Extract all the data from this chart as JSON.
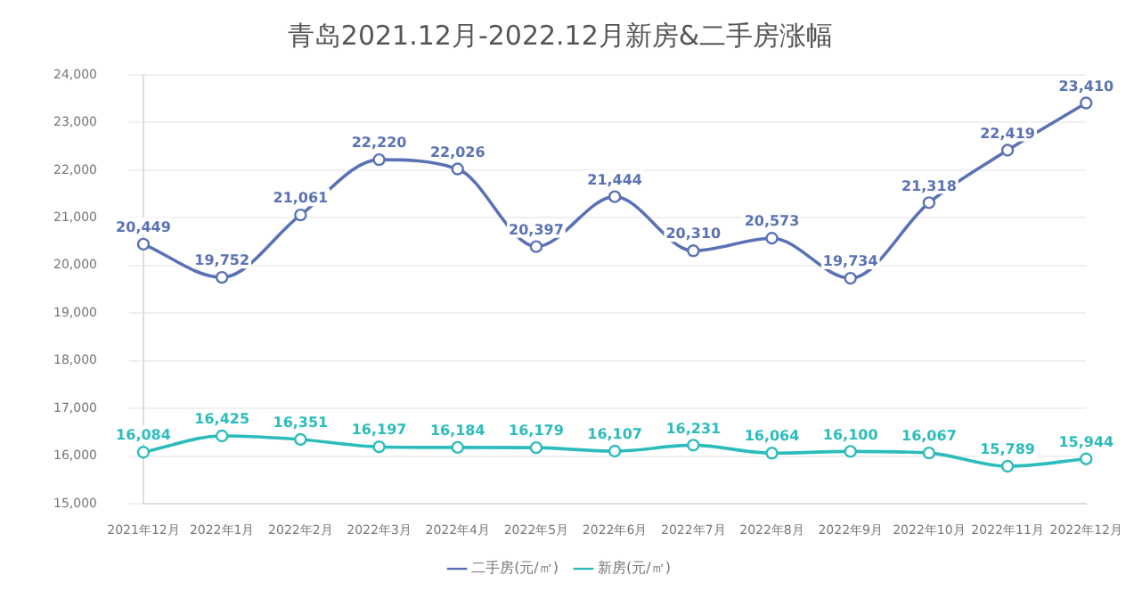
{
  "chart_data": {
    "type": "line",
    "title": "青岛2021.12月-2022.12月新房&二手房涨幅",
    "categories": [
      "2021年12月",
      "2022年1月",
      "2022年2月",
      "2022年3月",
      "2022年4月",
      "2022年5月",
      "2022年6月",
      "2022年7月",
      "2022年8月",
      "2022年9月",
      "2022年10月",
      "2022年11月",
      "2022年12月"
    ],
    "series": [
      {
        "name": "二手房(元/㎡)",
        "color": "#5a72b5",
        "values": [
          20449,
          19752,
          21061,
          22220,
          22026,
          20397,
          21444,
          20310,
          20573,
          19734,
          21318,
          22419,
          23410
        ],
        "value_labels": [
          "20,449",
          "19,752",
          "21,061",
          "22,220",
          "22,026",
          "20,397",
          "21,444",
          "20,310",
          "20,573",
          "19,734",
          "21,318",
          "22,419",
          "23,410"
        ]
      },
      {
        "name": "新房(元/㎡)",
        "color": "#2cbcbc",
        "values": [
          16084,
          16425,
          16351,
          16197,
          16184,
          16179,
          16107,
          16231,
          16064,
          16100,
          16067,
          15789,
          15944
        ],
        "value_labels": [
          "16,084",
          "16,425",
          "16,351",
          "16,197",
          "16,184",
          "16,179",
          "16,107",
          "16,231",
          "16,064",
          "16,100",
          "16,067",
          "15,789",
          "15,944"
        ]
      }
    ],
    "ylim": [
      15000,
      24000
    ],
    "yticks": [
      {
        "value": 15000,
        "label": "15,000"
      },
      {
        "value": 16000,
        "label": "16,000"
      },
      {
        "value": 17000,
        "label": "17,000"
      },
      {
        "value": 18000,
        "label": "18,000"
      },
      {
        "value": 19000,
        "label": "19,000"
      },
      {
        "value": 20000,
        "label": "20,000"
      },
      {
        "value": 21000,
        "label": "21,000"
      },
      {
        "value": 22000,
        "label": "22,000"
      },
      {
        "value": 23000,
        "label": "23,000"
      },
      {
        "value": 24000,
        "label": "24,000"
      }
    ],
    "grid": "y",
    "legend": "bottom",
    "marker": "circle",
    "line_style": "solid"
  }
}
